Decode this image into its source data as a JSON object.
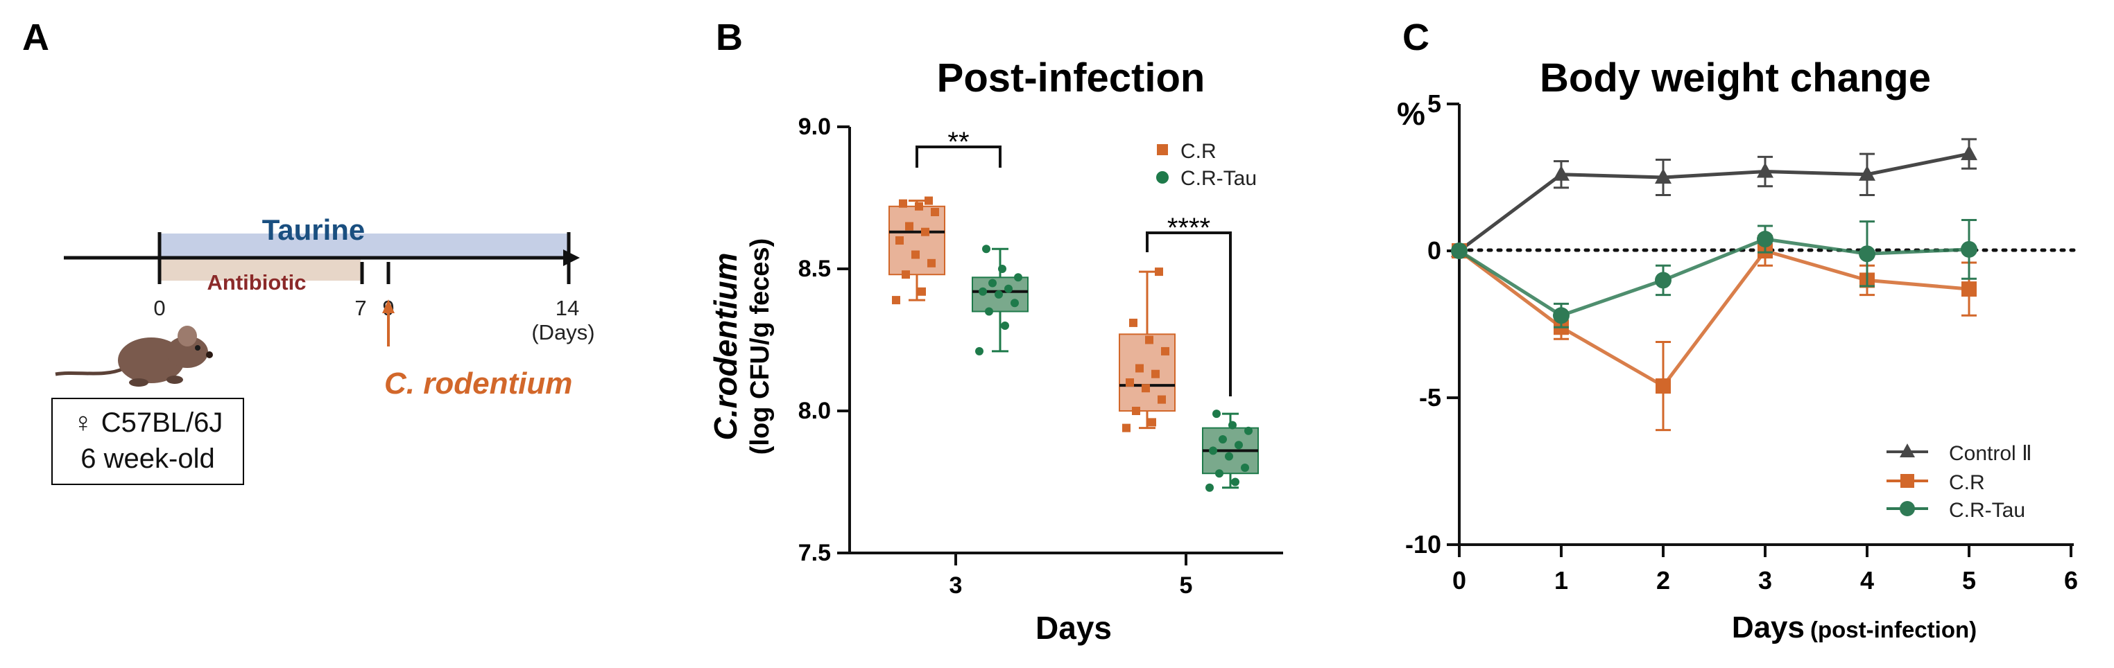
{
  "panel_a": {
    "panel_label": "A",
    "treatment_label": "Taurine",
    "antibiotic_label": "Antibiotic",
    "ticks": [
      "0",
      "7",
      "9",
      "14"
    ],
    "days_unit": "(Days)",
    "infection_label": "C. rodentium",
    "mouse_strain": "♀ C57BL/6J",
    "mouse_age": "6 week-old",
    "colors": {
      "taurine": "#1a4f80",
      "antibiotic": "#8b2a2a",
      "infection": "#d2672a"
    }
  },
  "chart_data": [
    {
      "type": "box",
      "panel_label": "B",
      "title": "Post-infection",
      "ylabel_main": "C.rodentium",
      "ylabel_sub": "(log CFU/g feces)",
      "xlabel": "Days",
      "ylim": [
        7.5,
        9.0
      ],
      "yticks": [
        "9.0",
        "8.5",
        "8.0",
        "7.5"
      ],
      "categories": [
        "3",
        "5"
      ],
      "series": [
        {
          "name": "C.R",
          "color": "#d2672a",
          "fill": "#e8b399",
          "boxes": [
            {
              "day": "3",
              "min": 8.39,
              "q1": 8.48,
              "median": 8.63,
              "q3": 8.72,
              "max": 8.74,
              "points": [
                8.39,
                8.42,
                8.48,
                8.52,
                8.55,
                8.6,
                8.63,
                8.65,
                8.7,
                8.72,
                8.73,
                8.74
              ]
            },
            {
              "day": "5",
              "min": 7.94,
              "q1": 8.0,
              "median": 8.09,
              "q3": 8.27,
              "max": 8.49,
              "points": [
                7.94,
                7.96,
                8.0,
                8.04,
                8.08,
                8.1,
                8.13,
                8.15,
                8.21,
                8.25,
                8.31,
                8.49
              ]
            }
          ]
        },
        {
          "name": "C.R-Tau",
          "color": "#1e7a4a",
          "fill": "#7aa98c",
          "boxes": [
            {
              "day": "3",
              "min": 8.21,
              "q1": 8.35,
              "median": 8.42,
              "q3": 8.47,
              "max": 8.57,
              "points": [
                8.21,
                8.3,
                8.35,
                8.38,
                8.41,
                8.42,
                8.43,
                8.45,
                8.47,
                8.5,
                8.57
              ]
            },
            {
              "day": "5",
              "min": 7.73,
              "q1": 7.78,
              "median": 7.86,
              "q3": 7.94,
              "max": 7.99,
              "points": [
                7.73,
                7.75,
                7.78,
                7.8,
                7.84,
                7.86,
                7.88,
                7.9,
                7.93,
                7.95,
                7.99
              ]
            }
          ]
        }
      ],
      "significance": [
        "**",
        "****"
      ]
    },
    {
      "type": "line",
      "panel_label": "C",
      "title": "Body weight change",
      "ylabel": "%",
      "xlabel_main": "Days",
      "xlabel_sub": "(post-infection)",
      "xlim": [
        0,
        6
      ],
      "ylim": [
        -10,
        5
      ],
      "xticks": [
        "0",
        "1",
        "2",
        "3",
        "4",
        "5",
        "6"
      ],
      "yticks": [
        "5",
        "0",
        "-5",
        "-10"
      ],
      "reference_line": 0,
      "series": [
        {
          "name": "Control Ⅱ",
          "color": "#474747",
          "marker": "triangle",
          "x": [
            0,
            1,
            2,
            3,
            4,
            5
          ],
          "y": [
            0,
            2.6,
            2.5,
            2.7,
            2.6,
            3.3
          ],
          "err": [
            0,
            0.45,
            0.6,
            0.5,
            0.7,
            0.5
          ]
        },
        {
          "name": "C.R",
          "color": "#d2672a",
          "marker": "square",
          "x": [
            0,
            1,
            2,
            3,
            4,
            5
          ],
          "y": [
            0,
            -2.6,
            -4.6,
            0.0,
            -1.0,
            -1.3
          ],
          "err": [
            0,
            0.4,
            1.5,
            0.5,
            0.5,
            0.9
          ]
        },
        {
          "name": "C.R-Tau",
          "color": "#2f7a55",
          "marker": "circle",
          "x": [
            0,
            1,
            2,
            3,
            4,
            5
          ],
          "y": [
            0,
            -2.2,
            -1.0,
            0.4,
            -0.1,
            0.05
          ],
          "err": [
            0,
            0.4,
            0.5,
            0.45,
            1.1,
            1.0
          ]
        }
      ]
    }
  ]
}
